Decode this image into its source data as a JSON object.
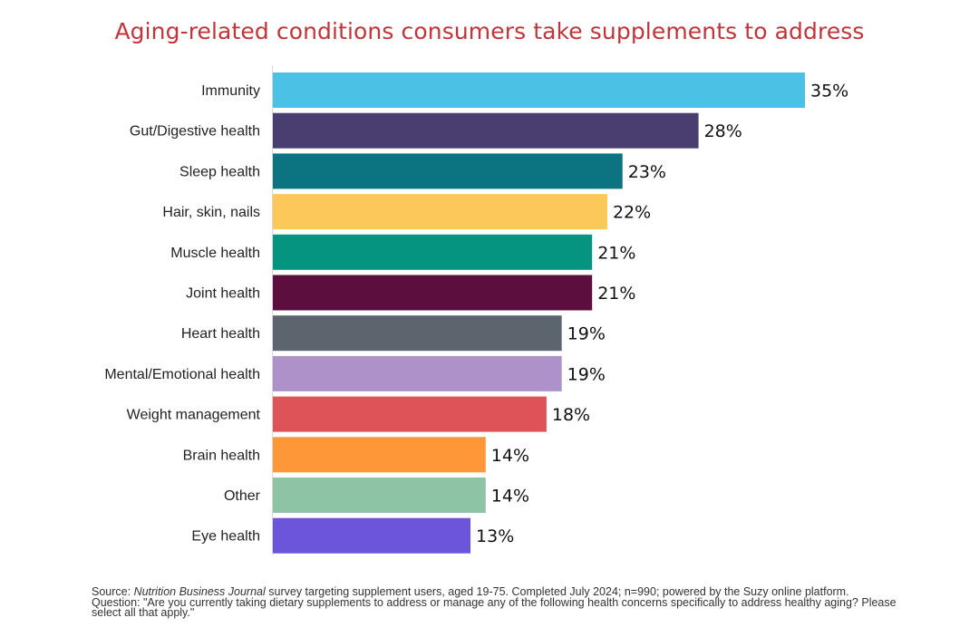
{
  "title": "Aging-related conditions consumers take supplements to address",
  "chart_data": {
    "type": "bar",
    "orientation": "horizontal",
    "title": "Aging-related conditions consumers take supplements to address",
    "categories": [
      "Immunity",
      "Gut/Digestive health",
      "Sleep health",
      "Hair, skin, nails",
      "Muscle health",
      "Joint health",
      "Heart health",
      "Mental/Emotional health",
      "Weight management",
      "Brain health",
      "Other",
      "Eye health"
    ],
    "values": [
      35,
      28,
      23,
      22,
      21,
      21,
      19,
      19,
      18,
      14,
      14,
      13
    ],
    "value_labels": [
      "35%",
      "28%",
      "23%",
      "22%",
      "21%",
      "21%",
      "19%",
      "19%",
      "18%",
      "14%",
      "14%",
      "13%"
    ],
    "colors": [
      "#4cc1e6",
      "#4a3d70",
      "#0b7480",
      "#fdc85a",
      "#059480",
      "#5c0e3e",
      "#5c656e",
      "#ae91c8",
      "#de5358",
      "#fd9737",
      "#8ec3a6",
      "#6d55db"
    ],
    "xlim": [
      0,
      35
    ],
    "unit": "%",
    "grid": false,
    "legend": "none"
  },
  "source": {
    "prefix": "Source: ",
    "publication": "Nutrition Business Journal",
    "text": " survey targeting supplement users, aged 19-75. Completed July 2024;  n=990; powered by the Suzy online platform.",
    "question": "Question: \"Are you currently taking dietary supplements to address or manage any of the following health concerns specifically to address healthy aging? Please select all that apply.\""
  }
}
